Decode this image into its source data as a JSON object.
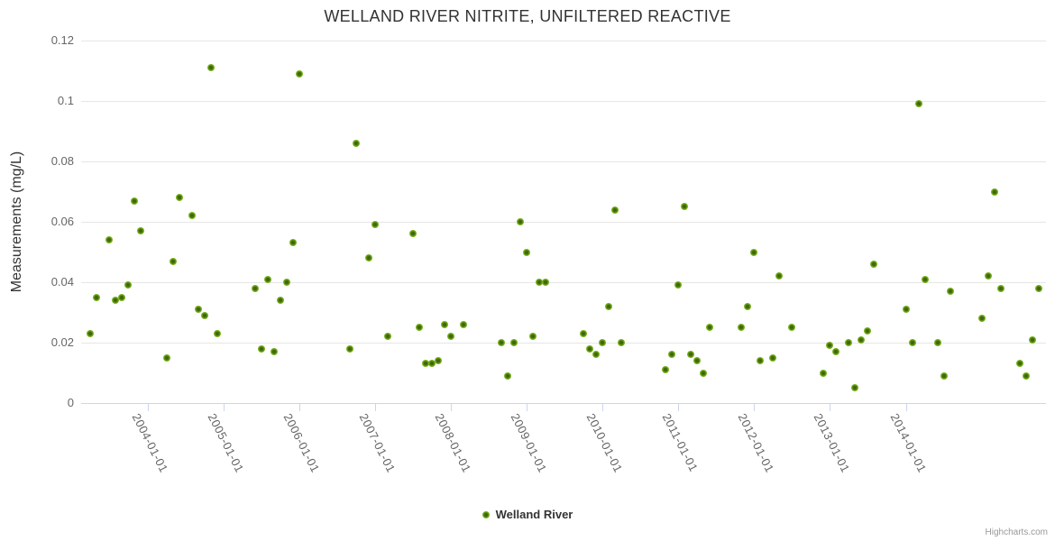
{
  "chart_data": {
    "type": "scatter",
    "title": "WELLAND RIVER NITRITE, UNFILTERED REACTIVE",
    "xlabel": "",
    "ylabel": "Measurements (mg/L)",
    "ylim": [
      0,
      0.12
    ],
    "y_ticks": [
      "0",
      "0.02",
      "0.04",
      "0.06",
      "0.08",
      "0.1",
      "0.12"
    ],
    "x_ticks": [
      "2004-01-01",
      "2005-01-01",
      "2006-01-01",
      "2007-01-01",
      "2008-01-01",
      "2009-01-01",
      "2010-01-01",
      "2011-01-01",
      "2012-01-01",
      "2013-01-01",
      "2014-01-01"
    ],
    "x_range": [
      "2003-02",
      "2015-11"
    ],
    "grid": "horizontal",
    "legend_position": "bottom-center",
    "credit": "Highcharts.com",
    "series": [
      {
        "name": "Welland River",
        "color": "#7bb51f",
        "color_center": "#3f660b",
        "color_edge": "#8dc82a",
        "points": [
          [
            "2003-04",
            0.023
          ],
          [
            "2003-05",
            0.035
          ],
          [
            "2003-07",
            0.054
          ],
          [
            "2003-08",
            0.034
          ],
          [
            "2003-09",
            0.035
          ],
          [
            "2003-10",
            0.039
          ],
          [
            "2003-11",
            0.067
          ],
          [
            "2003-12",
            0.057
          ],
          [
            "2004-04",
            0.015
          ],
          [
            "2004-05",
            0.047
          ],
          [
            "2004-06",
            0.068
          ],
          [
            "2004-08",
            0.062
          ],
          [
            "2004-09",
            0.031
          ],
          [
            "2004-10",
            0.029
          ],
          [
            "2004-11",
            0.111
          ],
          [
            "2004-12",
            0.023
          ],
          [
            "2005-06",
            0.038
          ],
          [
            "2005-07",
            0.018
          ],
          [
            "2005-08",
            0.041
          ],
          [
            "2005-09",
            0.017
          ],
          [
            "2005-10",
            0.034
          ],
          [
            "2005-11",
            0.04
          ],
          [
            "2005-12",
            0.053
          ],
          [
            "2006-01",
            0.109
          ],
          [
            "2006-09",
            0.018
          ],
          [
            "2006-10",
            0.086
          ],
          [
            "2006-12",
            0.048
          ],
          [
            "2007-01",
            0.059
          ],
          [
            "2007-03",
            0.022
          ],
          [
            "2007-07",
            0.056
          ],
          [
            "2007-08",
            0.025
          ],
          [
            "2007-09",
            0.013
          ],
          [
            "2007-10",
            0.013
          ],
          [
            "2007-11",
            0.014
          ],
          [
            "2007-12",
            0.026
          ],
          [
            "2008-01",
            0.022
          ],
          [
            "2008-03",
            0.026
          ],
          [
            "2008-09",
            0.02
          ],
          [
            "2008-10",
            0.009
          ],
          [
            "2008-11",
            0.02
          ],
          [
            "2008-12",
            0.06
          ],
          [
            "2009-01",
            0.05
          ],
          [
            "2009-02",
            0.022
          ],
          [
            "2009-03",
            0.04
          ],
          [
            "2009-04",
            0.04
          ],
          [
            "2009-10",
            0.023
          ],
          [
            "2009-11",
            0.018
          ],
          [
            "2009-12",
            0.016
          ],
          [
            "2010-01",
            0.02
          ],
          [
            "2010-02",
            0.032
          ],
          [
            "2010-03",
            0.064
          ],
          [
            "2010-04",
            0.02
          ],
          [
            "2010-11",
            0.011
          ],
          [
            "2010-12",
            0.016
          ],
          [
            "2011-01",
            0.039
          ],
          [
            "2011-02",
            0.065
          ],
          [
            "2011-03",
            0.016
          ],
          [
            "2011-04",
            0.014
          ],
          [
            "2011-05",
            0.01
          ],
          [
            "2011-06",
            0.025
          ],
          [
            "2011-11",
            0.025
          ],
          [
            "2011-12",
            0.032
          ],
          [
            "2012-01",
            0.05
          ],
          [
            "2012-02",
            0.014
          ],
          [
            "2012-04",
            0.015
          ],
          [
            "2012-05",
            0.042
          ],
          [
            "2012-07",
            0.025
          ],
          [
            "2012-12",
            0.01
          ],
          [
            "2013-01",
            0.019
          ],
          [
            "2013-02",
            0.017
          ],
          [
            "2013-04",
            0.02
          ],
          [
            "2013-05",
            0.005
          ],
          [
            "2013-06",
            0.021
          ],
          [
            "2013-07",
            0.024
          ],
          [
            "2013-08",
            0.046
          ],
          [
            "2014-01",
            0.031
          ],
          [
            "2014-02",
            0.02
          ],
          [
            "2014-03",
            0.099
          ],
          [
            "2014-04",
            0.041
          ],
          [
            "2014-06",
            0.02
          ],
          [
            "2014-07",
            0.009
          ],
          [
            "2014-08",
            0.037
          ],
          [
            "2015-01",
            0.028
          ],
          [
            "2015-02",
            0.042
          ],
          [
            "2015-03",
            0.07
          ],
          [
            "2015-04",
            0.038
          ],
          [
            "2015-07",
            0.013
          ],
          [
            "2015-08",
            0.009
          ],
          [
            "2015-09",
            0.021
          ],
          [
            "2015-10",
            0.038
          ]
        ]
      }
    ]
  }
}
